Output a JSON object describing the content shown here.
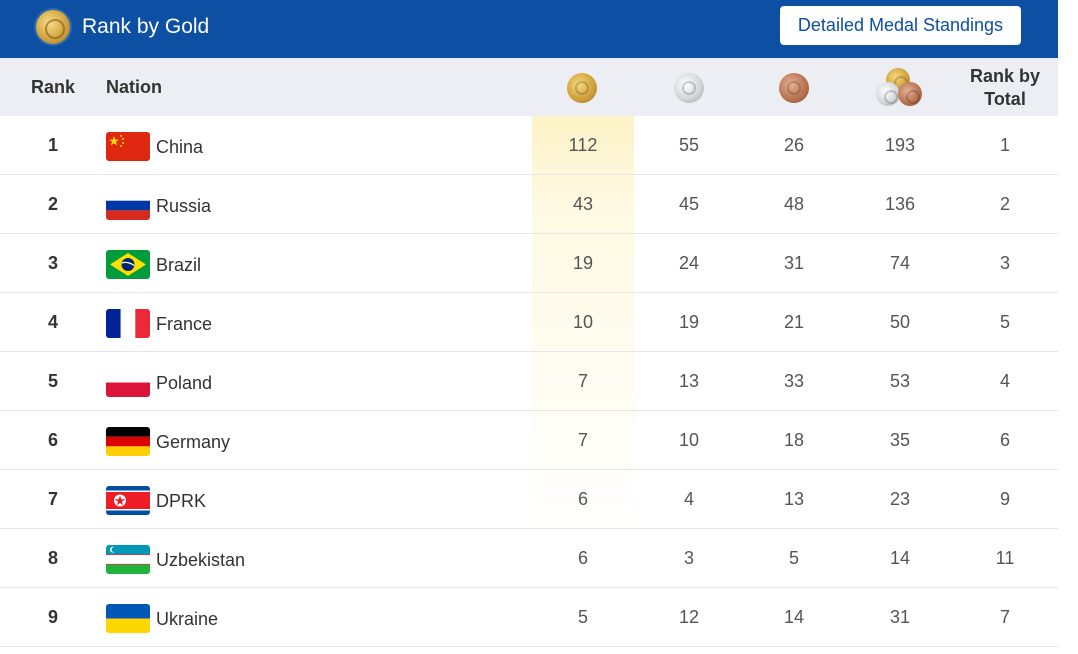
{
  "header": {
    "title": "Rank by Gold",
    "detail_button": "Detailed Medal Standings"
  },
  "columns": {
    "rank": "Rank",
    "nation": "Nation",
    "rank_by_total_line1": "Rank by",
    "rank_by_total_line2": "Total"
  },
  "rows": [
    {
      "rank": "1",
      "nation": "China",
      "flag": "china-flag-icon",
      "gold": "112",
      "silver": "55",
      "bronze": "26",
      "total": "193",
      "rank_by_total": "1"
    },
    {
      "rank": "2",
      "nation": "Russia",
      "flag": "russia-flag-icon",
      "gold": "43",
      "silver": "45",
      "bronze": "48",
      "total": "136",
      "rank_by_total": "2"
    },
    {
      "rank": "3",
      "nation": "Brazil",
      "flag": "brazil-flag-icon",
      "gold": "19",
      "silver": "24",
      "bronze": "31",
      "total": "74",
      "rank_by_total": "3"
    },
    {
      "rank": "4",
      "nation": "France",
      "flag": "france-flag-icon",
      "gold": "10",
      "silver": "19",
      "bronze": "21",
      "total": "50",
      "rank_by_total": "5"
    },
    {
      "rank": "5",
      "nation": "Poland",
      "flag": "poland-flag-icon",
      "gold": "7",
      "silver": "13",
      "bronze": "33",
      "total": "53",
      "rank_by_total": "4"
    },
    {
      "rank": "6",
      "nation": "Germany",
      "flag": "germany-flag-icon",
      "gold": "7",
      "silver": "10",
      "bronze": "18",
      "total": "35",
      "rank_by_total": "6"
    },
    {
      "rank": "7",
      "nation": "DPRK",
      "flag": "dprk-flag-icon",
      "gold": "6",
      "silver": "4",
      "bronze": "13",
      "total": "23",
      "rank_by_total": "9"
    },
    {
      "rank": "8",
      "nation": "Uzbekistan",
      "flag": "uzbekistan-flag-icon",
      "gold": "6",
      "silver": "3",
      "bronze": "5",
      "total": "14",
      "rank_by_total": "11"
    },
    {
      "rank": "9",
      "nation": "Ukraine",
      "flag": "ukraine-flag-icon",
      "gold": "5",
      "silver": "12",
      "bronze": "14",
      "total": "31",
      "rank_by_total": "7"
    }
  ],
  "colors": {
    "header_blue": "#0d4fa3",
    "header_row_bg": "#eceef3",
    "gold_highlight": "#fae178"
  }
}
